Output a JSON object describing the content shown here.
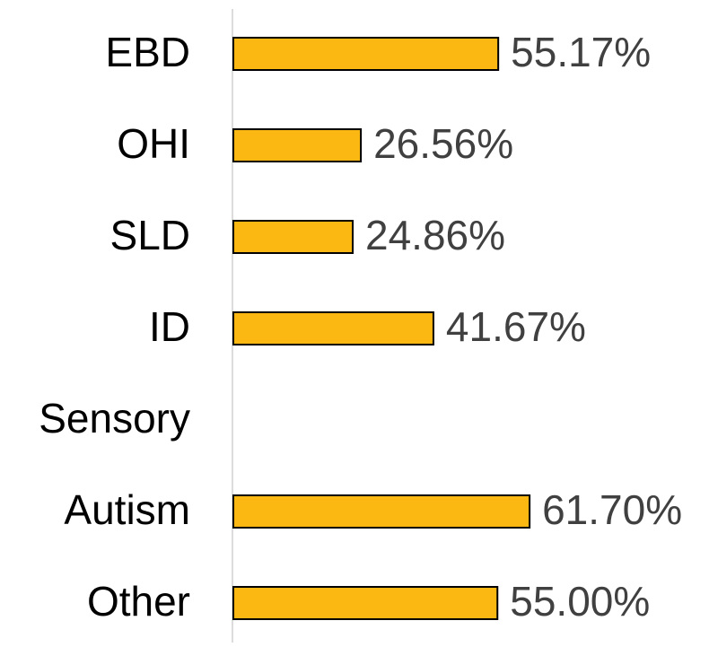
{
  "chart_data": {
    "type": "bar",
    "orientation": "horizontal",
    "categories": [
      "EBD",
      "OHI",
      "SLD",
      "ID",
      "Sensory",
      "Autism",
      "Other"
    ],
    "values": [
      55.17,
      26.56,
      24.86,
      41.67,
      null,
      61.7,
      55.0
    ],
    "value_labels": [
      "55.17%",
      "26.56%",
      "24.86%",
      "41.67%",
      null,
      "61.70%",
      "55.00%"
    ],
    "color": "#fbb813",
    "xlim": [
      0,
      100
    ]
  }
}
